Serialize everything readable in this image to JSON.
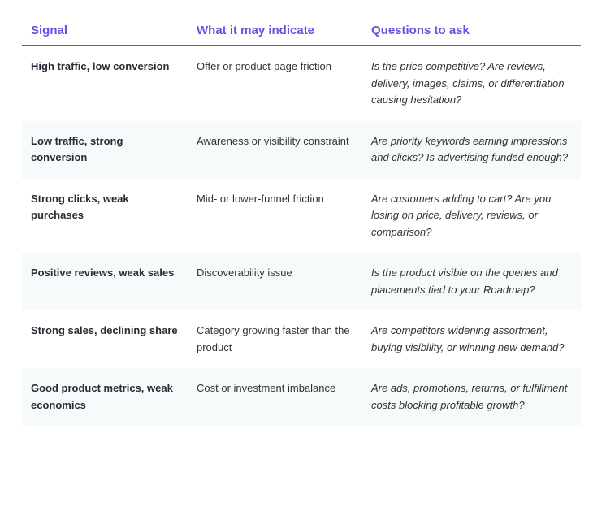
{
  "table": {
    "headers": [
      "Signal",
      "What it may indicate",
      "Questions to ask"
    ],
    "rows": [
      [
        "High traffic, low conversion",
        "Offer or product-page friction",
        "Is the price competitive? Are reviews, delivery, images, claims, or differentiation causing hesitation?"
      ],
      [
        "Low traffic, strong conversion",
        "Awareness or visibility constraint",
        "Are priority keywords earning impressions and clicks? Is advertising funded enough?"
      ],
      [
        "Strong clicks, weak purchases",
        "Mid- or lower-funnel friction",
        "Are customers adding to cart? Are you losing on price, delivery, reviews, or comparison?"
      ],
      [
        "Positive reviews, weak sales",
        "Discoverability issue",
        "Is the product visible on the queries and placements tied to your Roadmap?"
      ],
      [
        "Strong sales, declining share",
        "Category growing faster than the product",
        "Are competitors widening assortment, buying visibility, or winning new demand?"
      ],
      [
        "Good product metrics, weak economics",
        "Cost or investment imbalance",
        "Are ads, promotions, returns, or fulfillment costs blocking profitable growth?"
      ]
    ]
  }
}
